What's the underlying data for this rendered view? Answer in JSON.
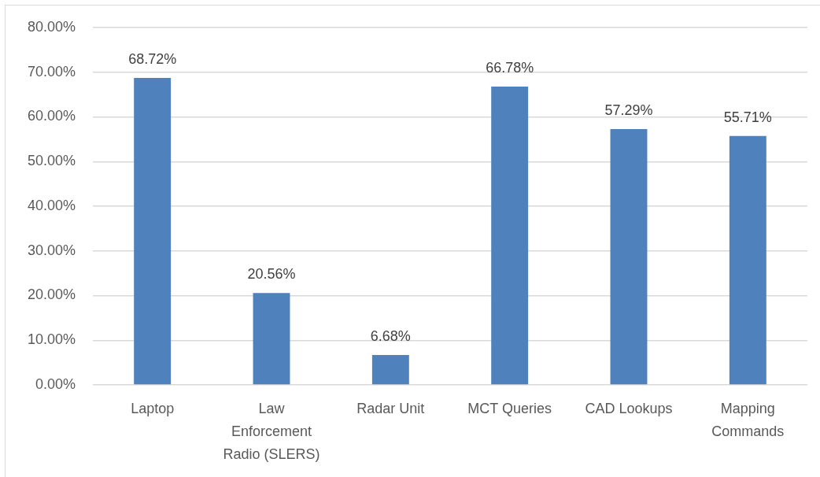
{
  "chart_data": {
    "type": "bar",
    "categories": [
      "Laptop",
      "Law Enforcement Radio (SLERS)",
      "Radar Unit",
      "MCT Queries",
      "CAD Lookups",
      "Mapping Commands"
    ],
    "values": [
      68.72,
      20.56,
      6.68,
      66.78,
      57.29,
      55.71
    ],
    "value_labels": [
      "68.72%",
      "20.56%",
      "6.68%",
      "66.78%",
      "57.29%",
      "55.71%"
    ],
    "color": "#4f81bd",
    "ylim": [
      0,
      80
    ],
    "yticks": [
      {
        "value": 0,
        "label": "0.00%"
      },
      {
        "value": 10,
        "label": "10.00%"
      },
      {
        "value": 20,
        "label": "20.00%"
      },
      {
        "value": 30,
        "label": "30.00%"
      },
      {
        "value": 40,
        "label": "40.00%"
      },
      {
        "value": 50,
        "label": "50.00%"
      },
      {
        "value": 60,
        "label": "60.00%"
      },
      {
        "value": 70,
        "label": "70.00%"
      },
      {
        "value": 80,
        "label": "80.00%"
      }
    ],
    "grid": "y"
  }
}
